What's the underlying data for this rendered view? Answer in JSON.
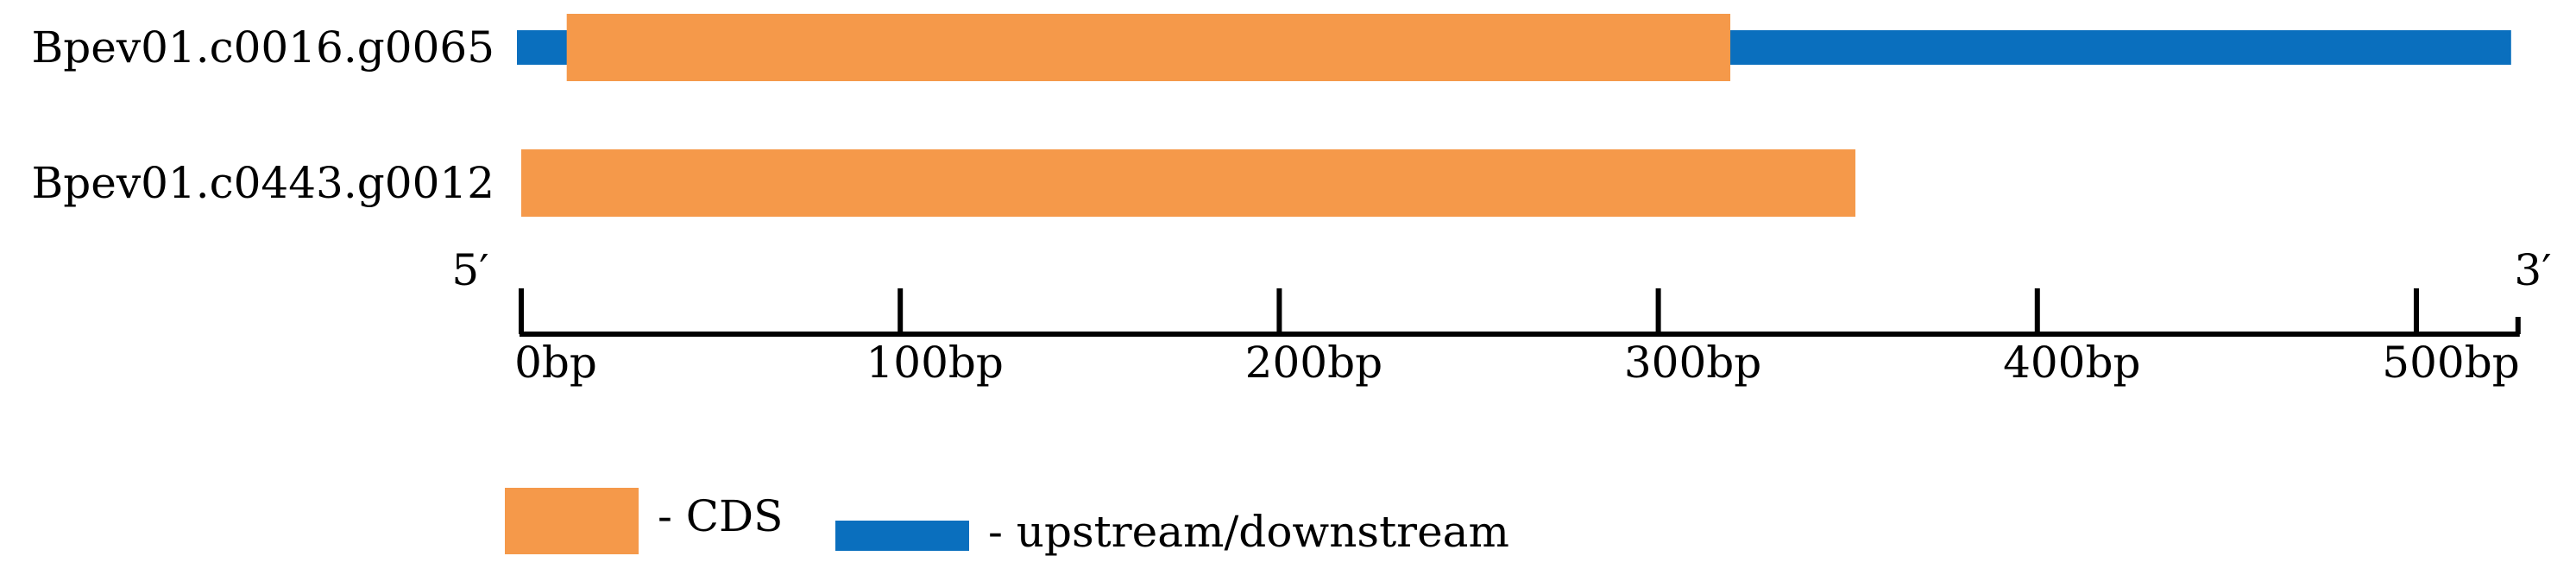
{
  "colors": {
    "cds": "#F5994A",
    "flank": "#0A6FBE",
    "axis": "#000000"
  },
  "genes": [
    {
      "name": "Bpev01.c0016.g0065",
      "flank_start": 0,
      "flank_end": 525,
      "cds_start": 12,
      "cds_end": 319
    },
    {
      "name": "Bpev01.c0443.g0012",
      "flank_start": null,
      "flank_end": null,
      "cds_start": 0,
      "cds_end": 352
    }
  ],
  "axis": {
    "min": 0,
    "max": 525,
    "five_prime_label": "5′",
    "three_prime_label": "3′",
    "ticks": [
      {
        "value": 0,
        "label": "0bp"
      },
      {
        "value": 100,
        "label": "100bp"
      },
      {
        "value": 200,
        "label": "200bp"
      },
      {
        "value": 300,
        "label": "300bp"
      },
      {
        "value": 400,
        "label": "400bp"
      },
      {
        "value": 500,
        "label": "500bp"
      }
    ]
  },
  "legend": {
    "cds_label": "- CDS",
    "flank_label": "- upstream/downstream"
  }
}
